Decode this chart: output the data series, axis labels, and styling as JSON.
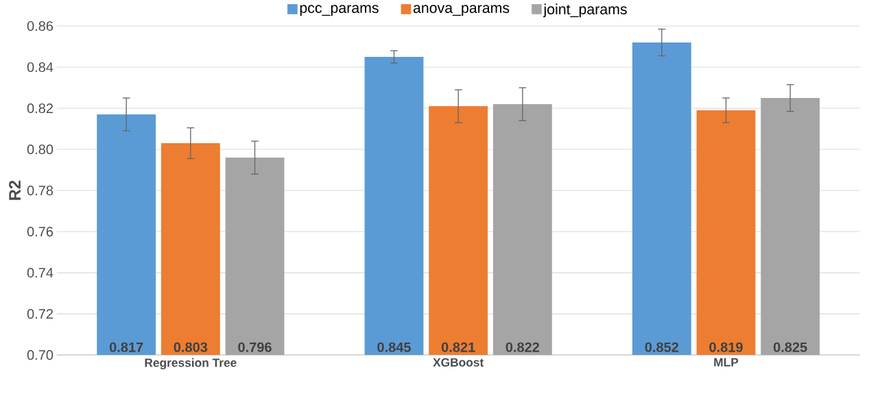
{
  "chart_data": {
    "type": "bar",
    "ylabel": "R2",
    "categories": [
      "Regression Tree",
      "XGBoost",
      "MLP"
    ],
    "series": [
      {
        "name": "pcc_params",
        "color": "#5b9bd5",
        "values": [
          0.817,
          0.845,
          0.852
        ],
        "errors": [
          0.008,
          0.003,
          0.0065
        ]
      },
      {
        "name": "anova_params",
        "color": "#ed7d31",
        "values": [
          0.803,
          0.821,
          0.819
        ],
        "errors": [
          0.0075,
          0.008,
          0.006
        ]
      },
      {
        "name": "joint_params",
        "color": "#a5a5a5",
        "values": [
          0.796,
          0.822,
          0.825
        ],
        "errors": [
          0.008,
          0.008,
          0.0065
        ]
      }
    ],
    "ylim": [
      0.7,
      0.86
    ],
    "yticks": [
      {
        "value": 0.7,
        "label": "0.70"
      },
      {
        "value": 0.72,
        "label": "0.72"
      },
      {
        "value": 0.74,
        "label": "0.74"
      },
      {
        "value": 0.76,
        "label": "0.76"
      },
      {
        "value": 0.78,
        "label": "0.78"
      },
      {
        "value": 0.8,
        "label": "0.80"
      },
      {
        "value": 0.82,
        "label": "0.82"
      },
      {
        "value": 0.84,
        "label": "0.84"
      },
      {
        "value": 0.86,
        "label": "0.86"
      }
    ],
    "grid": "y",
    "legend": "top",
    "data_labels": true
  }
}
